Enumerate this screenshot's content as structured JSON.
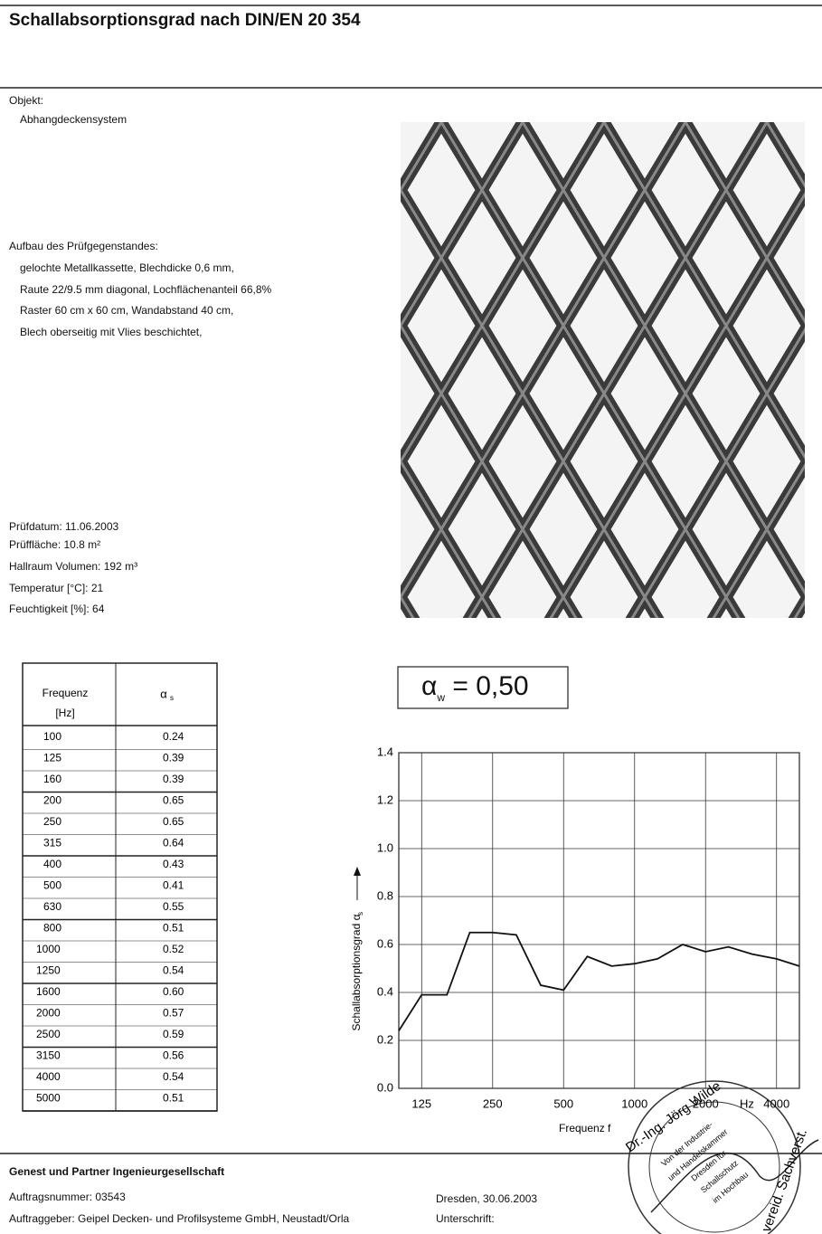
{
  "header": {
    "title": "Schallabsorptionsgrad nach DIN/EN 20 354"
  },
  "object": {
    "label": "Objekt:",
    "text": "Abhangdeckensystem"
  },
  "structure": {
    "label": "Aufbau des Prüfgegenstandes:",
    "lines": [
      "gelochte Metallkassette, Blechdicke 0,6  mm,",
      "Raute 22/9.5 mm diagonal, Lochflächenanteil 66,8%",
      "Raster 60 cm x 60 cm, Wandabstand 40 cm,",
      "Blech oberseitig mit Vlies beschichtet,"
    ]
  },
  "test_info": [
    "Prüfdatum: 11.06.2003",
    "Prüffläche: 10.8 m²",
    "Hallraum Volumen: 192 m³",
    "Temperatur [°C]: 21",
    "Feuchtigkeit [%]: 64"
  ],
  "table": {
    "freq_header": [
      "Frequenz",
      "[Hz]"
    ],
    "alpha_header": {
      "symbol": "α",
      "sub": "s"
    },
    "rows": [
      [
        "100",
        "0.24"
      ],
      [
        "125",
        "0.39"
      ],
      [
        "160",
        "0.39"
      ],
      [
        "200",
        "0.65"
      ],
      [
        "250",
        "0.65"
      ],
      [
        "315",
        "0.64"
      ],
      [
        "400",
        "0.43"
      ],
      [
        "500",
        "0.41"
      ],
      [
        "630",
        "0.55"
      ],
      [
        "800",
        "0.51"
      ],
      [
        "1000",
        "0.52"
      ],
      [
        "1250",
        "0.54"
      ],
      [
        "1600",
        "0.60"
      ],
      [
        "2000",
        "0.57"
      ],
      [
        "2500",
        "0.59"
      ],
      [
        "3150",
        "0.56"
      ],
      [
        "4000",
        "0.54"
      ],
      [
        "5000",
        "0.51"
      ]
    ]
  },
  "rating": {
    "symbol": "α",
    "sub": "w",
    "value": "= 0,50"
  },
  "chart_data": {
    "type": "line",
    "log_x": true,
    "grid": true,
    "color": "#111111",
    "x_label": "Frequenz f",
    "x_unit": "Hz",
    "y_label": "Schallabsorptionsgrad α",
    "y_label_sub": "s",
    "x": [
      100,
      125,
      160,
      200,
      250,
      315,
      400,
      500,
      630,
      800,
      1000,
      1250,
      1600,
      2000,
      2500,
      3150,
      4000,
      5000
    ],
    "series": [
      {
        "name": "αs",
        "color": "#111111",
        "values": [
          0.24,
          0.39,
          0.39,
          0.65,
          0.65,
          0.64,
          0.43,
          0.41,
          0.55,
          0.51,
          0.52,
          0.54,
          0.6,
          0.57,
          0.59,
          0.56,
          0.54,
          0.51
        ]
      }
    ],
    "xlim": [
      100,
      5000
    ],
    "xticks": [
      125,
      250,
      500,
      1000,
      2000,
      4000
    ],
    "ylim": [
      0,
      1.4
    ],
    "yticks": [
      {
        "value": 0,
        "label": "0.0"
      },
      {
        "value": 0.2,
        "label": "0.2"
      },
      {
        "value": 0.4,
        "label": "0.4"
      },
      {
        "value": 0.6,
        "label": "0.6"
      },
      {
        "value": 0.8,
        "label": "0.8"
      },
      {
        "value": 1.0,
        "label": "1.0"
      },
      {
        "value": 1.2,
        "label": "1.2"
      },
      {
        "value": 1.4,
        "label": "1.4"
      }
    ]
  },
  "footer": {
    "company": "Genest und Partner Ingenieurgesellschaft",
    "order": "Auftragsnummer: 03543",
    "client": "Auftraggeber: Geipel Decken- und Profilsysteme GmbH, Neustadt/Orla",
    "place_date": "Dresden, 30.06.2003",
    "signature": "Unterschrift:"
  },
  "stamp": {
    "outer": "Dr.-Ing. Jörg Wilde",
    "right": "vereid. Sachverst.",
    "inner": [
      "Von der Industrie-",
      "und Handelskammer",
      "Dresden für",
      "Schallschutz",
      "im Hochbau"
    ]
  }
}
